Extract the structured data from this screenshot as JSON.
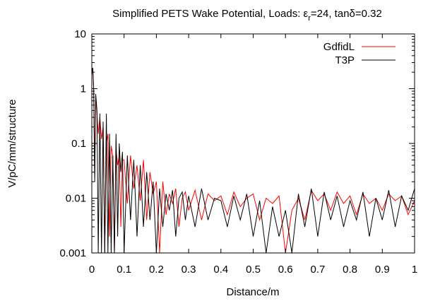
{
  "chart_data": {
    "type": "line",
    "title": {
      "prefix": "Simplified PETS Wake Potential, Loads: ε",
      "sub": "r",
      "suffix": "=24, tanδ=0.32"
    },
    "xlabel": "Distance/m",
    "ylabel": "V/pC/mm/structure",
    "xlim": [
      0,
      1
    ],
    "ylim": [
      0.001,
      10
    ],
    "yscale": "log",
    "grid": false,
    "legend_position": "top-right",
    "x_ticks": [
      0,
      0.1,
      0.2,
      0.3,
      0.4,
      0.5,
      0.6,
      0.7,
      0.8,
      0.9,
      1
    ],
    "x_tick_labels": [
      "0",
      "0.1",
      "0.2",
      "0.3",
      "0.4",
      "0.5",
      "0.6",
      "0.7",
      "0.8",
      "0.9",
      "1"
    ],
    "y_ticks": [
      0.001,
      0.01,
      0.1,
      1,
      10
    ],
    "y_tick_labels": [
      "0.001",
      "0.01",
      "0.1",
      "1",
      "10"
    ],
    "series": [
      {
        "name": "GdfidL",
        "color": "#ff0000",
        "x": [
          0,
          0.003,
          0.006,
          0.009,
          0.012,
          0.016,
          0.02,
          0.025,
          0.03,
          0.035,
          0.04,
          0.045,
          0.05,
          0.055,
          0.06,
          0.065,
          0.07,
          0.075,
          0.08,
          0.085,
          0.09,
          0.095,
          0.1,
          0.11,
          0.12,
          0.13,
          0.14,
          0.15,
          0.16,
          0.17,
          0.18,
          0.19,
          0.2,
          0.21,
          0.22,
          0.23,
          0.24,
          0.25,
          0.26,
          0.27,
          0.28,
          0.29,
          0.3,
          0.32,
          0.34,
          0.36,
          0.38,
          0.4,
          0.42,
          0.44,
          0.46,
          0.48,
          0.5,
          0.52,
          0.54,
          0.56,
          0.58,
          0.6,
          0.62,
          0.64,
          0.66,
          0.68,
          0.7,
          0.72,
          0.74,
          0.76,
          0.78,
          0.8,
          0.82,
          0.84,
          0.86,
          0.88,
          0.9,
          0.92,
          0.94,
          0.96,
          0.98,
          1.0
        ],
        "y": [
          1.8,
          2.2,
          0.9,
          0.025,
          0.7,
          0.35,
          0.15,
          0.3,
          0.12,
          0.2,
          0.001,
          0.1,
          0.15,
          0.002,
          0.09,
          0.06,
          0.001,
          0.08,
          0.04,
          0.06,
          0.003,
          0.05,
          0.05,
          0.008,
          0.06,
          0.015,
          0.04,
          0.009,
          0.05,
          0.004,
          0.03,
          0.012,
          0.02,
          0.001,
          0.02,
          0.005,
          0.012,
          0.008,
          0.015,
          0.003,
          0.01,
          0.013,
          0.006,
          0.014,
          0.004,
          0.012,
          0.009,
          0.011,
          0.005,
          0.013,
          0.007,
          0.01,
          0.012,
          0.004,
          0.01,
          0.008,
          0.011,
          0.001,
          0.006,
          0.01,
          0.004,
          0.014,
          0.009,
          0.012,
          0.006,
          0.013,
          0.008,
          0.011,
          0.005,
          0.012,
          0.008,
          0.01,
          0.006,
          0.012,
          0.009,
          0.011,
          0.005,
          0.009
        ]
      },
      {
        "name": "T3P",
        "color": "#000000",
        "x": [
          0,
          0.003,
          0.006,
          0.009,
          0.012,
          0.016,
          0.02,
          0.025,
          0.03,
          0.035,
          0.04,
          0.045,
          0.05,
          0.055,
          0.06,
          0.065,
          0.07,
          0.075,
          0.08,
          0.085,
          0.09,
          0.095,
          0.1,
          0.11,
          0.12,
          0.13,
          0.14,
          0.15,
          0.16,
          0.17,
          0.18,
          0.19,
          0.2,
          0.21,
          0.22,
          0.23,
          0.24,
          0.25,
          0.26,
          0.27,
          0.28,
          0.29,
          0.3,
          0.32,
          0.34,
          0.36,
          0.38,
          0.4,
          0.42,
          0.44,
          0.46,
          0.48,
          0.5,
          0.52,
          0.54,
          0.56,
          0.58,
          0.6,
          0.62,
          0.64,
          0.66,
          0.68,
          0.7,
          0.72,
          0.74,
          0.76,
          0.78,
          0.8,
          0.82,
          0.84,
          0.86,
          0.88,
          0.9,
          0.92,
          0.94,
          0.96,
          0.98,
          1.0
        ],
        "y": [
          2.0,
          2.4,
          1.0,
          0.02,
          0.8,
          0.4,
          0.001,
          0.35,
          0.001,
          0.25,
          0.001,
          0.35,
          0.001,
          0.15,
          0.001,
          0.06,
          0.001,
          0.15,
          0.002,
          0.1,
          0.03,
          0.07,
          0.001,
          0.06,
          0.004,
          0.05,
          0.002,
          0.04,
          0.003,
          0.03,
          0.004,
          0.02,
          0.001,
          0.015,
          0.003,
          0.012,
          0.006,
          0.014,
          0.002,
          0.01,
          0.013,
          0.004,
          0.011,
          0.003,
          0.015,
          0.004,
          0.01,
          0.009,
          0.003,
          0.011,
          0.004,
          0.012,
          0.002,
          0.009,
          0.001,
          0.007,
          0.002,
          0.006,
          0.001,
          0.012,
          0.003,
          0.015,
          0.002,
          0.013,
          0.004,
          0.011,
          0.003,
          0.009,
          0.004,
          0.013,
          0.002,
          0.01,
          0.004,
          0.014,
          0.003,
          0.011,
          0.006,
          0.015
        ]
      }
    ]
  }
}
